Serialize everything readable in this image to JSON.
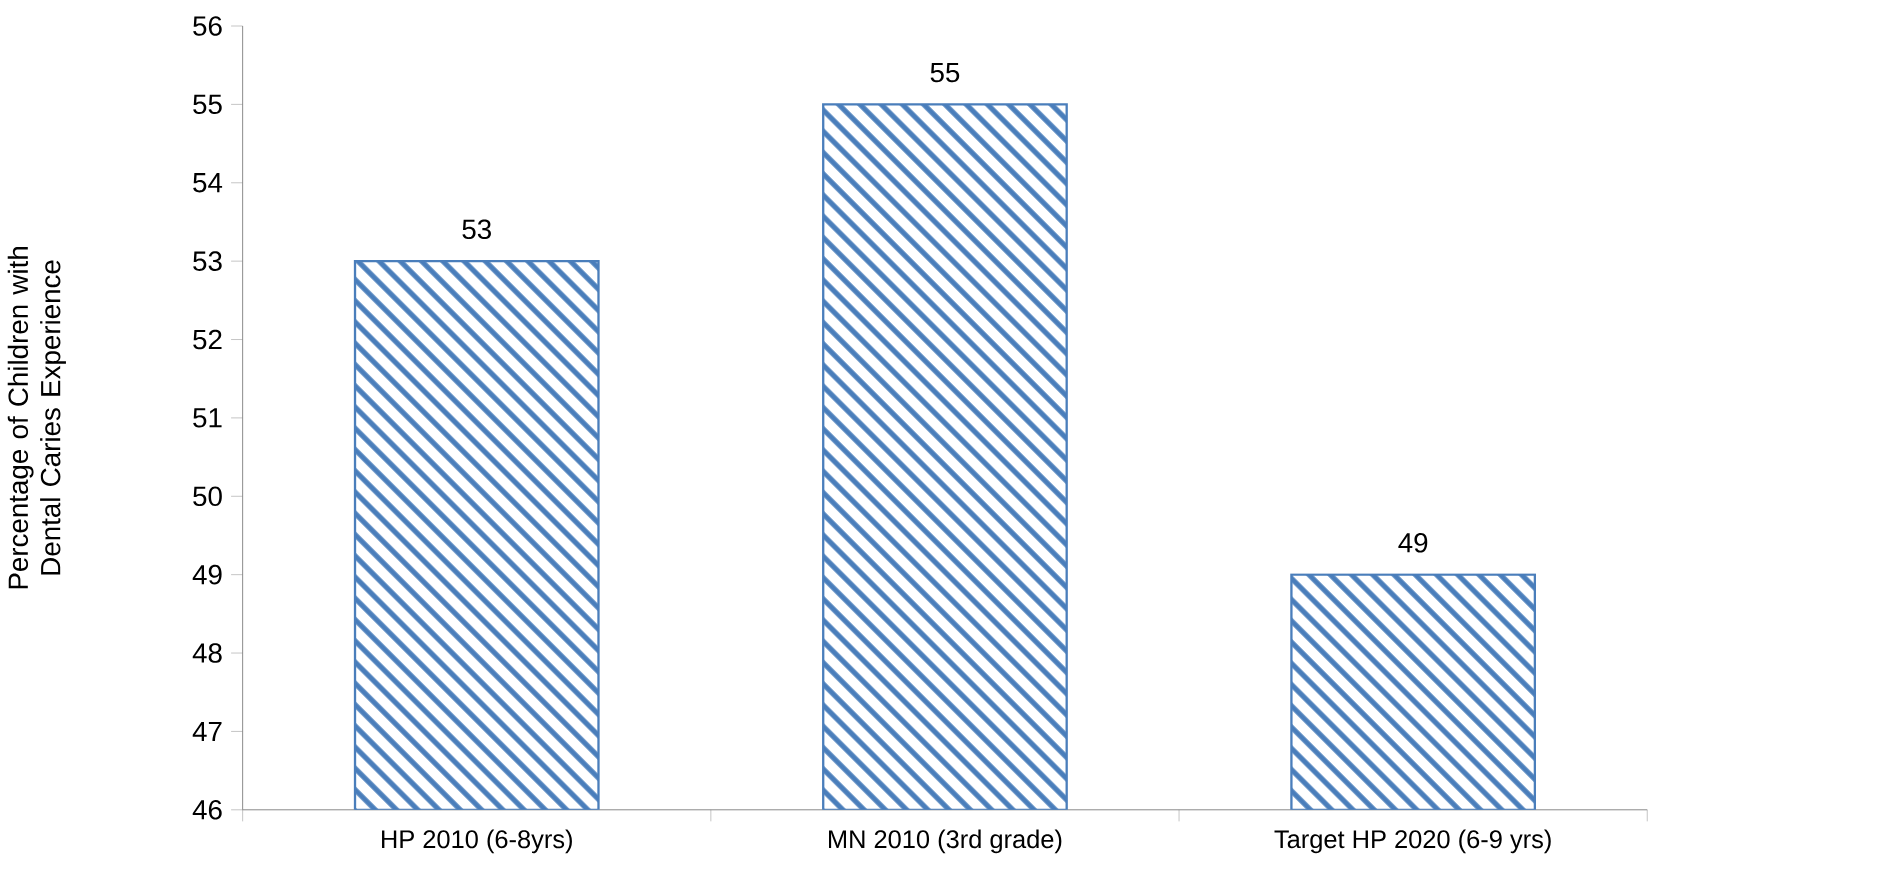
{
  "chart_data": {
    "type": "bar",
    "ylabel": "Percentage of Children with Dental Caries Experience",
    "categories": [
      "HP 2010 (6-8yrs)",
      "MN 2010 (3rd grade)",
      "Target HP 2020 (6-9 yrs)"
    ],
    "values": [
      53,
      55,
      49
    ],
    "color": "#4a7ebb",
    "ylim": [
      46,
      56
    ],
    "yticks": [
      46,
      47,
      48,
      49,
      50,
      51,
      52,
      53,
      54,
      55,
      56
    ],
    "data_labels": true
  }
}
